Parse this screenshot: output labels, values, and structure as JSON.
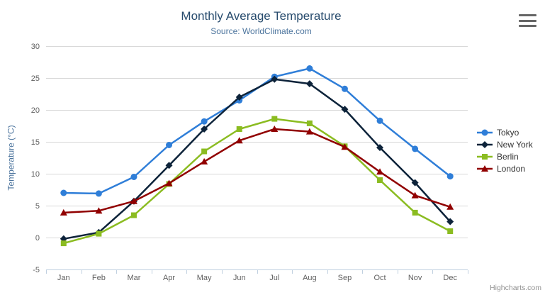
{
  "chart_data": {
    "type": "line",
    "title": "Monthly Average Temperature",
    "subtitle": "Source: WorldClimate.com",
    "categories": [
      "Jan",
      "Feb",
      "Mar",
      "Apr",
      "May",
      "Jun",
      "Jul",
      "Aug",
      "Sep",
      "Oct",
      "Nov",
      "Dec"
    ],
    "series": [
      {
        "name": "Tokyo",
        "color": "#2f7ed8",
        "marker": "circle",
        "values": [
          7.0,
          6.9,
          9.5,
          14.5,
          18.2,
          21.5,
          25.2,
          26.5,
          23.3,
          18.3,
          13.9,
          9.6
        ]
      },
      {
        "name": "New York",
        "color": "#0d233a",
        "marker": "diamond",
        "values": [
          -0.2,
          0.8,
          5.7,
          11.3,
          17.0,
          22.0,
          24.8,
          24.1,
          20.1,
          14.1,
          8.6,
          2.5
        ]
      },
      {
        "name": "Berlin",
        "color": "#8bbc21",
        "marker": "square",
        "values": [
          -0.9,
          0.6,
          3.5,
          8.4,
          13.5,
          17.0,
          18.6,
          17.9,
          14.3,
          9.0,
          3.9,
          1.0
        ]
      },
      {
        "name": "London",
        "color": "#910000",
        "marker": "triangle",
        "values": [
          3.9,
          4.2,
          5.7,
          8.5,
          11.9,
          15.2,
          17.0,
          16.6,
          14.2,
          10.3,
          6.6,
          4.8
        ]
      }
    ],
    "xlabel": "",
    "ylabel": "Temperature (°C)",
    "ylim": [
      -5,
      30
    ],
    "ytick_step": 5,
    "grid": true,
    "legend_position": "right",
    "styles": {
      "grid_color": "#d8d8d8",
      "axis_line_color": "#c0d0e0",
      "tick_color": "#c0d0e0",
      "label_color": "#606060"
    }
  },
  "credits": {
    "label": "Highcharts.com"
  },
  "menu": {
    "icon": "hamburger-icon"
  }
}
